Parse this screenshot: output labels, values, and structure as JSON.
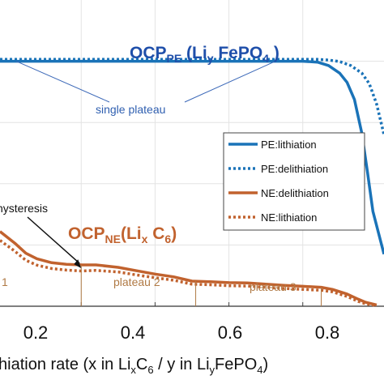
{
  "chart_data": {
    "type": "line",
    "xlabel": {
      "prefix": "hiation rate (x in Li",
      "sub1": "x",
      "mid1": "C",
      "sub2": "6",
      "mid2": "  / y in  Li",
      "sub3": "y",
      "tail": "FePO",
      "sub4": "4",
      "close": ")"
    },
    "xlim": [
      -0.02,
      1.02
    ],
    "ylim": [
      0,
      1
    ],
    "xticks": [
      0.2,
      0.4,
      0.6,
      0.8
    ],
    "xtick_labels": [
      "0.2",
      "0.4",
      "0.6",
      "0.8"
    ],
    "grid": true,
    "legend_position": "right",
    "series": [
      {
        "name": "PE:lithiation",
        "color": "#1a73b8",
        "style": "solid",
        "points": [
          [
            -0.02,
            0.8
          ],
          [
            0.1,
            0.8
          ],
          [
            0.3,
            0.8
          ],
          [
            0.5,
            0.8
          ],
          [
            0.7,
            0.8
          ],
          [
            0.8,
            0.8
          ],
          [
            0.84,
            0.797
          ],
          [
            0.87,
            0.786
          ],
          [
            0.9,
            0.761
          ],
          [
            0.92,
            0.731
          ],
          [
            0.94,
            0.675
          ],
          [
            0.96,
            0.564
          ],
          [
            0.975,
            0.44
          ],
          [
            0.99,
            0.31
          ],
          [
            1.02,
            0.17
          ]
        ]
      },
      {
        "name": "PE:delithiation",
        "color": "#1a73b8",
        "style": "dotted",
        "points": [
          [
            -0.02,
            0.806
          ],
          [
            0.1,
            0.806
          ],
          [
            0.3,
            0.806
          ],
          [
            0.5,
            0.806
          ],
          [
            0.7,
            0.806
          ],
          [
            0.84,
            0.806
          ],
          [
            0.87,
            0.804
          ],
          [
            0.9,
            0.799
          ],
          [
            0.93,
            0.786
          ],
          [
            0.96,
            0.761
          ],
          [
            0.98,
            0.727
          ],
          [
            1.0,
            0.66
          ],
          [
            1.02,
            0.56
          ]
        ]
      },
      {
        "name": "NE:delithiation",
        "color": "#c1622e",
        "style": "solid",
        "points": [
          [
            -0.02,
            0.244
          ],
          [
            0.02,
            0.206
          ],
          [
            0.05,
            0.173
          ],
          [
            0.08,
            0.155
          ],
          [
            0.12,
            0.142
          ],
          [
            0.16,
            0.137
          ],
          [
            0.2,
            0.135
          ],
          [
            0.24,
            0.135
          ],
          [
            0.3,
            0.127
          ],
          [
            0.35,
            0.116
          ],
          [
            0.4,
            0.105
          ],
          [
            0.45,
            0.096
          ],
          [
            0.5,
            0.082
          ],
          [
            0.55,
            0.08
          ],
          [
            0.6,
            0.077
          ],
          [
            0.65,
            0.076
          ],
          [
            0.7,
            0.072
          ],
          [
            0.75,
            0.068
          ],
          [
            0.8,
            0.065
          ],
          [
            0.85,
            0.062
          ],
          [
            0.88,
            0.055
          ],
          [
            0.92,
            0.04
          ],
          [
            0.95,
            0.023
          ],
          [
            0.97,
            0.013
          ],
          [
            1.0,
            0.004
          ]
        ]
      },
      {
        "name": "NE:lithiation",
        "color": "#c1622e",
        "style": "dotted",
        "points": [
          [
            -0.02,
            0.215
          ],
          [
            0.02,
            0.18
          ],
          [
            0.05,
            0.15
          ],
          [
            0.08,
            0.134
          ],
          [
            0.12,
            0.123
          ],
          [
            0.16,
            0.118
          ],
          [
            0.2,
            0.115
          ],
          [
            0.24,
            0.117
          ],
          [
            0.3,
            0.112
          ],
          [
            0.35,
            0.102
          ],
          [
            0.4,
            0.093
          ],
          [
            0.45,
            0.085
          ],
          [
            0.5,
            0.072
          ],
          [
            0.55,
            0.07
          ],
          [
            0.6,
            0.067
          ],
          [
            0.65,
            0.066
          ],
          [
            0.7,
            0.062
          ],
          [
            0.75,
            0.058
          ],
          [
            0.8,
            0.055
          ],
          [
            0.85,
            0.052
          ],
          [
            0.88,
            0.047
          ],
          [
            0.92,
            0.032
          ],
          [
            0.95,
            0.016
          ],
          [
            0.97,
            0.008
          ],
          [
            1.0,
            0.002
          ]
        ]
      }
    ],
    "annotations": {
      "ocp_pe": {
        "main": "OCP",
        "sub": "PE",
        "open": " (Li",
        "sub2": "y",
        "tail": " FePO",
        "sub3": "4",
        "close": " )",
        "color": "#1f4faa"
      },
      "ocp_ne": {
        "main": "OCP",
        "sub": "NE",
        "open": "(Li",
        "sub2": "x",
        "mid": " C",
        "sub3": "6",
        "close": ")",
        "color": "#c1622e"
      },
      "single_plateau": "single plateau",
      "hysteresis": "hysteresis",
      "plateau1": "1",
      "plateau2": "plateau 2",
      "plateau3": "plateau 3"
    }
  }
}
